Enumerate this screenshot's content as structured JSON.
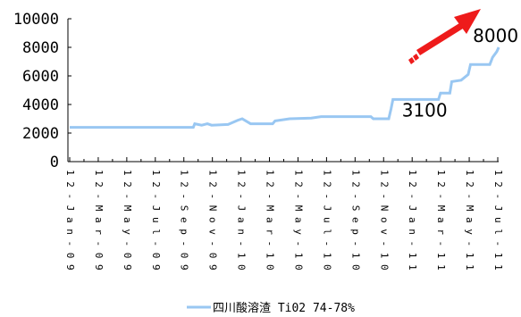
{
  "chart_data": {
    "type": "line",
    "title": "",
    "xlabel": "",
    "ylabel": "",
    "ylim": [
      0,
      10000
    ],
    "yticks": [
      "0",
      "2000",
      "4000",
      "6000",
      "8000",
      "10000"
    ],
    "xticks": [
      "12-Jan-09",
      "12-Mar-09",
      "12-May-09",
      "12-Jul-09",
      "12-Sep-09",
      "12-Nov-09",
      "12-Jan-10",
      "12-Mar-10",
      "12-May-10",
      "12-Jul-10",
      "12-Sep-10",
      "12-Nov-10",
      "12-Jan-11",
      "12-Mar-11",
      "12-May-11",
      "12-Jul-11"
    ],
    "legend_position": "bottom",
    "grid": false,
    "series": [
      {
        "name": "四川酸溶渣 Ti02 74-78%",
        "color": "#99c7f2",
        "points": [
          [
            "2009-01-12",
            2400
          ],
          [
            "2009-10-02",
            2400
          ],
          [
            "2009-10-05",
            2650
          ],
          [
            "2009-10-20",
            2550
          ],
          [
            "2009-11-01",
            2650
          ],
          [
            "2009-11-10",
            2550
          ],
          [
            "2009-12-15",
            2600
          ],
          [
            "2010-01-05",
            2900
          ],
          [
            "2010-01-14",
            3000
          ],
          [
            "2010-02-01",
            2650
          ],
          [
            "2010-03-20",
            2650
          ],
          [
            "2010-03-25",
            2850
          ],
          [
            "2010-04-25",
            3000
          ],
          [
            "2010-06-10",
            3050
          ],
          [
            "2010-07-01",
            3150
          ],
          [
            "2010-10-15",
            3150
          ],
          [
            "2010-10-20",
            3000
          ],
          [
            "2010-11-22",
            3000
          ],
          [
            "2010-11-27",
            3700
          ],
          [
            "2010-12-01",
            4350
          ],
          [
            "2011-03-08",
            4350
          ],
          [
            "2011-03-12",
            4800
          ],
          [
            "2011-04-01",
            4800
          ],
          [
            "2011-04-05",
            5600
          ],
          [
            "2011-04-25",
            5700
          ],
          [
            "2011-05-10",
            6100
          ],
          [
            "2011-05-15",
            6800
          ],
          [
            "2011-06-25",
            6800
          ],
          [
            "2011-07-01",
            7300
          ],
          [
            "2011-07-10",
            7700
          ],
          [
            "2011-07-14",
            8000
          ]
        ]
      }
    ],
    "annotations": [
      {
        "label": "3100",
        "date": "2010-12-01",
        "value": 3100
      },
      {
        "label": "8000",
        "date": "2011-07-14",
        "value": 8000
      }
    ],
    "arrow_color": "#ee1b1b"
  }
}
